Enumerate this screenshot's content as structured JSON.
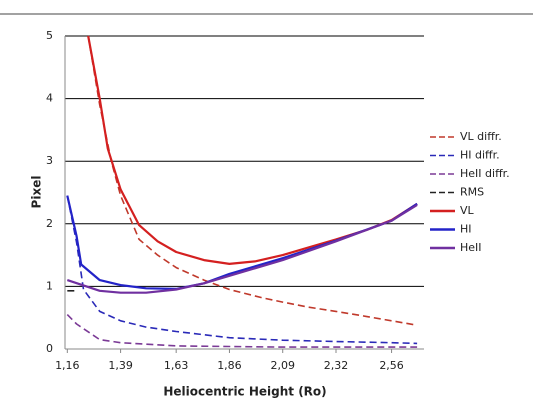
{
  "chart_data": {
    "type": "line",
    "y_label": "Pixel",
    "x_label": "Heliocentric Height (Ro)",
    "xlim": [
      1.15,
      2.7
    ],
    "ylim": [
      0,
      5
    ],
    "xticks": [
      {
        "value": 1.16,
        "label": "1,16"
      },
      {
        "value": 1.39,
        "label": "1,39"
      },
      {
        "value": 1.63,
        "label": "1,63"
      },
      {
        "value": 1.86,
        "label": "1,86"
      },
      {
        "value": 2.09,
        "label": "2,09"
      },
      {
        "value": 2.32,
        "label": "2,32"
      },
      {
        "value": 2.56,
        "label": "2,56"
      }
    ],
    "yticks": [
      0,
      1,
      2,
      3,
      4,
      5
    ],
    "grid": true,
    "legend": "right",
    "series": [
      {
        "name": "VL diffr.",
        "color": "#c0392b",
        "dashed": true,
        "x": [
          1.25,
          1.3,
          1.35,
          1.39,
          1.47,
          1.55,
          1.63,
          1.75,
          1.86,
          2.0,
          2.09,
          2.2,
          2.32,
          2.45,
          2.56,
          2.67
        ],
        "values": [
          5,
          3.9,
          3.0,
          2.45,
          1.75,
          1.5,
          1.3,
          1.1,
          0.95,
          0.82,
          0.75,
          0.67,
          0.6,
          0.52,
          0.45,
          0.38
        ]
      },
      {
        "name": "HI diffr.",
        "color": "#2a2ab8",
        "dashed": true,
        "x": [
          1.16,
          1.2,
          1.23,
          1.3,
          1.39,
          1.5,
          1.63,
          1.86,
          2.09,
          2.32,
          2.56,
          2.67
        ],
        "values": [
          2.45,
          1.7,
          0.95,
          0.6,
          0.45,
          0.35,
          0.28,
          0.18,
          0.14,
          0.12,
          0.1,
          0.09
        ]
      },
      {
        "name": "HeII diffr.",
        "color": "#7b3a96",
        "dashed": true,
        "x": [
          1.16,
          1.2,
          1.3,
          1.39,
          1.63,
          1.86,
          2.09,
          2.32,
          2.56,
          2.67
        ],
        "values": [
          0.55,
          0.4,
          0.15,
          0.1,
          0.05,
          0.04,
          0.03,
          0.03,
          0.03,
          0.03
        ]
      },
      {
        "name": "RMS",
        "color": "#222222",
        "dashed": true,
        "x": [
          1.16,
          1.2
        ],
        "values": [
          0.93,
          0.93
        ]
      },
      {
        "name": "VL",
        "color": "#d42020",
        "dashed": false,
        "x": [
          1.25,
          1.3,
          1.335,
          1.39,
          1.47,
          1.55,
          1.63,
          1.75,
          1.86,
          1.97,
          2.09,
          2.2,
          2.32,
          2.45,
          2.56,
          2.67
        ],
        "values": [
          5,
          4.0,
          3.2,
          2.55,
          1.98,
          1.72,
          1.55,
          1.42,
          1.36,
          1.4,
          1.5,
          1.62,
          1.75,
          1.9,
          2.06,
          2.32
        ]
      },
      {
        "name": "HI",
        "color": "#2323c8",
        "dashed": false,
        "x": [
          1.16,
          1.2,
          1.22,
          1.3,
          1.39,
          1.5,
          1.63,
          1.75,
          1.86,
          2.09,
          2.32,
          2.56,
          2.67
        ],
        "values": [
          2.45,
          1.8,
          1.35,
          1.1,
          1.02,
          0.97,
          0.96,
          1.05,
          1.2,
          1.45,
          1.73,
          2.05,
          2.32
        ]
      },
      {
        "name": "HeII",
        "color": "#7030a0",
        "dashed": false,
        "x": [
          1.16,
          1.3,
          1.39,
          1.5,
          1.63,
          1.75,
          1.86,
          2.09,
          2.32,
          2.56,
          2.67
        ],
        "values": [
          1.1,
          0.93,
          0.9,
          0.9,
          0.95,
          1.05,
          1.17,
          1.42,
          1.72,
          2.05,
          2.3
        ]
      }
    ]
  }
}
